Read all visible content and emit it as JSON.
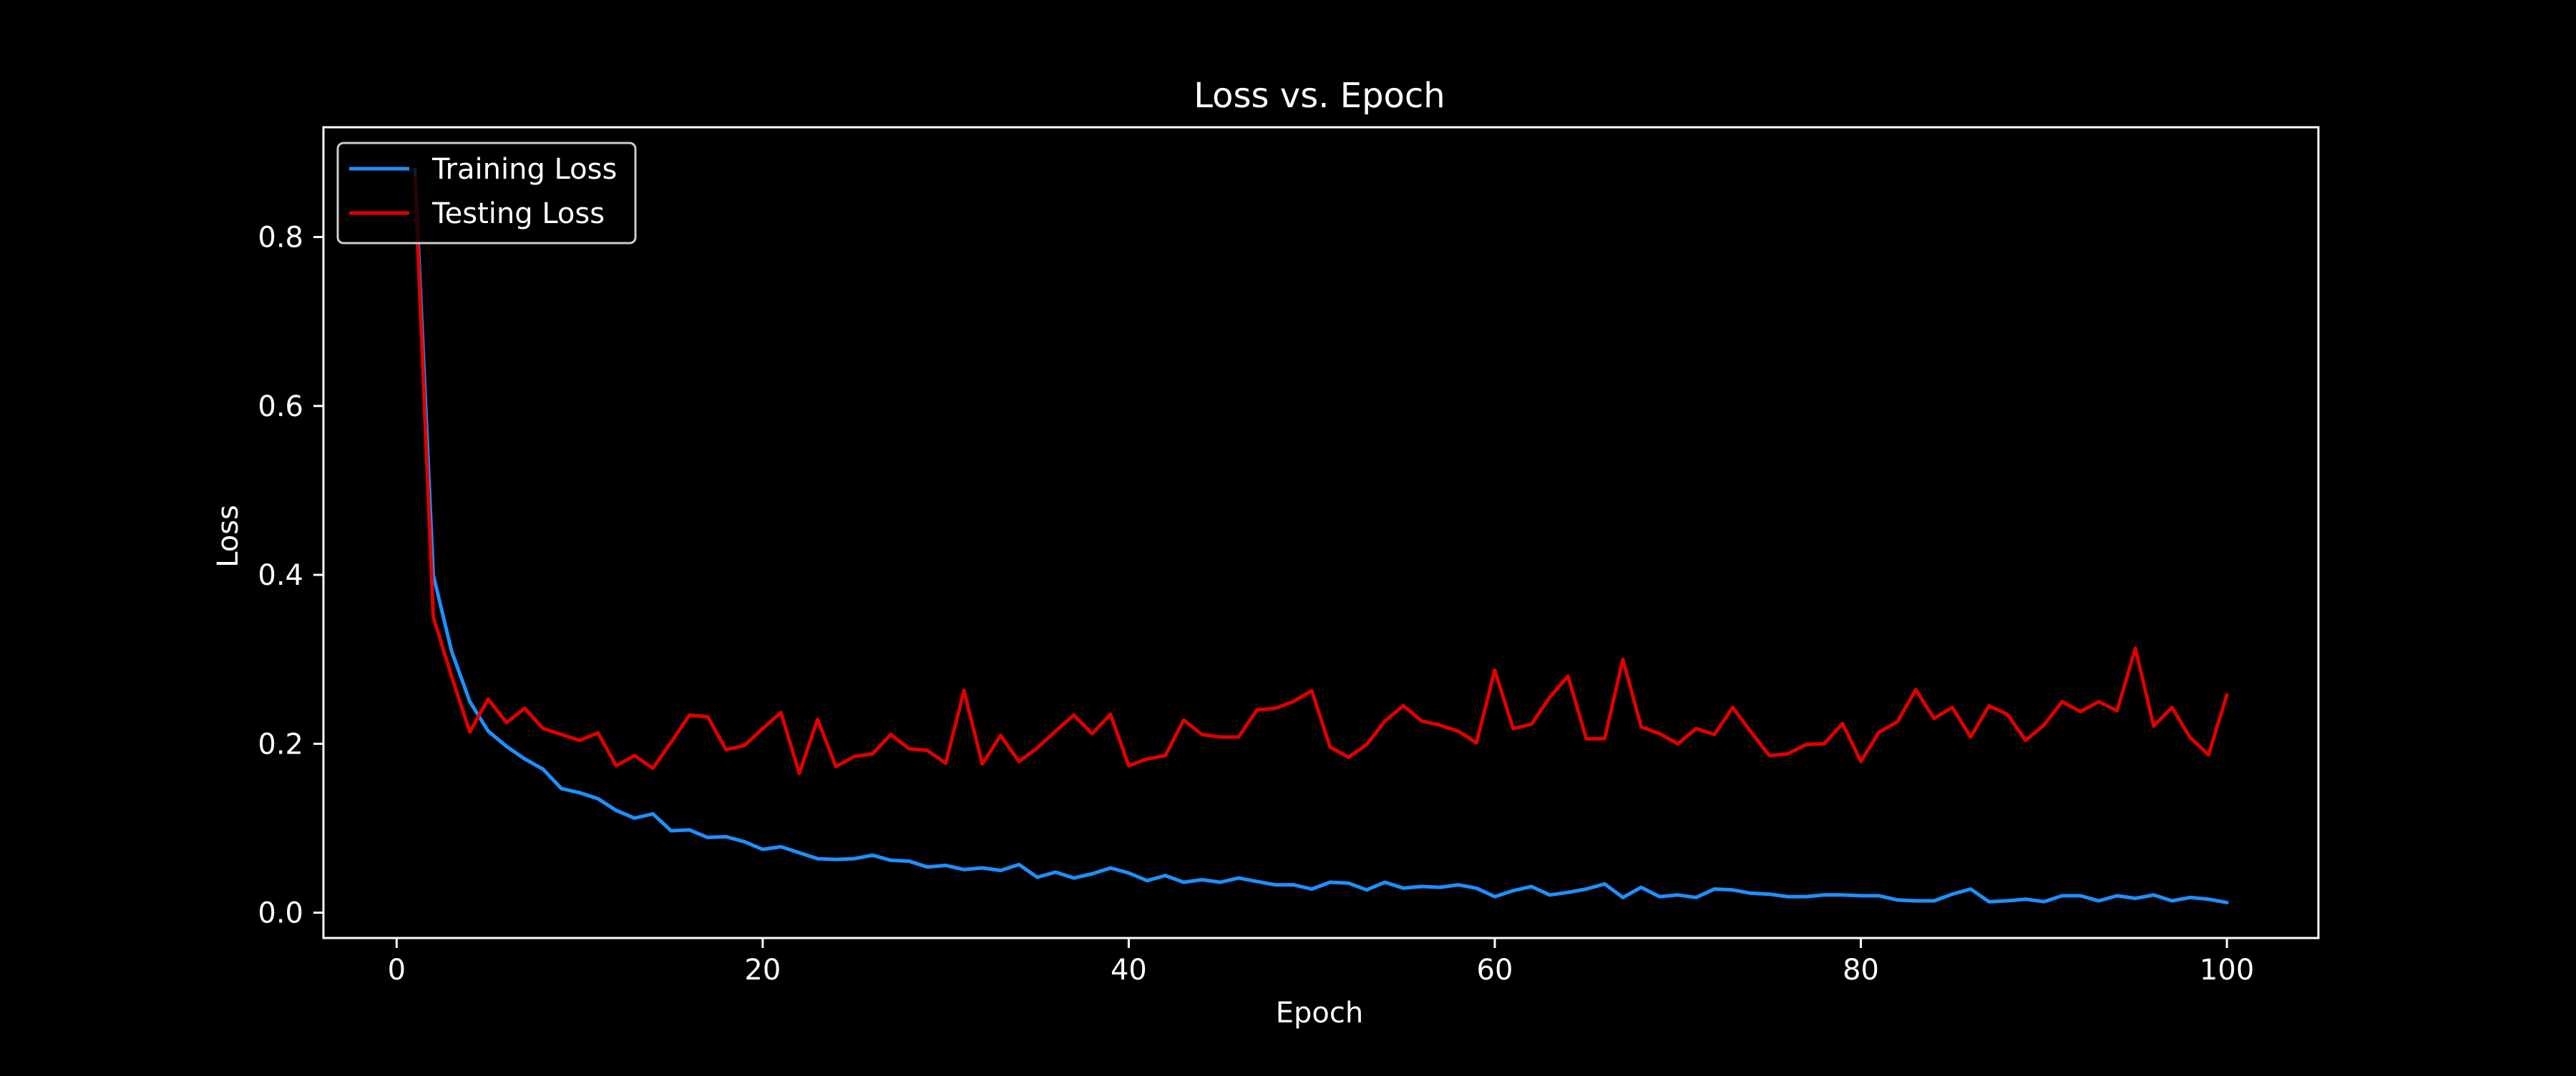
{
  "chart_data": {
    "type": "line",
    "title": "Loss vs. Epoch",
    "xlabel": "Epoch",
    "ylabel": "Loss",
    "xlim": [
      -4,
      105
    ],
    "ylim": [
      -0.03,
      0.93
    ],
    "xticks": [
      0,
      20,
      40,
      60,
      80,
      100
    ],
    "yticks": [
      0.0,
      0.2,
      0.4,
      0.6,
      0.8
    ],
    "xtick_labels": [
      "0",
      "20",
      "40",
      "60",
      "80",
      "100"
    ],
    "ytick_labels": [
      "0.0",
      "0.2",
      "0.4",
      "0.6",
      "0.8"
    ],
    "grid": false,
    "legend_position": "top-left",
    "x": [
      1,
      2,
      3,
      4,
      5,
      6,
      7,
      8,
      9,
      10,
      11,
      12,
      13,
      14,
      15,
      16,
      17,
      18,
      19,
      20,
      21,
      22,
      23,
      24,
      25,
      26,
      27,
      28,
      29,
      30,
      31,
      32,
      33,
      34,
      35,
      36,
      37,
      38,
      39,
      40,
      41,
      42,
      43,
      44,
      45,
      46,
      47,
      48,
      49,
      50,
      51,
      52,
      53,
      54,
      55,
      56,
      57,
      58,
      59,
      60,
      61,
      62,
      63,
      64,
      65,
      66,
      67,
      68,
      69,
      70,
      71,
      72,
      73,
      74,
      75,
      76,
      77,
      78,
      79,
      80,
      81,
      82,
      83,
      84,
      85,
      86,
      87,
      88,
      89,
      90,
      91,
      92,
      93,
      94,
      95,
      96,
      97,
      98,
      99,
      100
    ],
    "series": [
      {
        "name": "Training Loss",
        "color": "#1e90ff",
        "values": [
          0.88,
          0.4,
          0.31,
          0.25,
          0.215,
          0.197,
          0.182,
          0.17,
          0.147,
          0.142,
          0.135,
          0.121,
          0.112,
          0.117,
          0.097,
          0.098,
          0.089,
          0.09,
          0.084,
          0.075,
          0.078,
          0.071,
          0.064,
          0.063,
          0.064,
          0.068,
          0.062,
          0.061,
          0.054,
          0.056,
          0.051,
          0.053,
          0.05,
          0.057,
          0.042,
          0.048,
          0.041,
          0.046,
          0.053,
          0.047,
          0.038,
          0.044,
          0.036,
          0.039,
          0.036,
          0.041,
          0.037,
          0.033,
          0.033,
          0.028,
          0.036,
          0.035,
          0.027,
          0.036,
          0.029,
          0.031,
          0.03,
          0.033,
          0.029,
          0.019,
          0.026,
          0.031,
          0.021,
          0.024,
          0.028,
          0.034,
          0.018,
          0.03,
          0.019,
          0.021,
          0.018,
          0.028,
          0.027,
          0.023,
          0.022,
          0.019,
          0.019,
          0.021,
          0.021,
          0.02,
          0.02,
          0.015,
          0.014,
          0.014,
          0.022,
          0.028,
          0.013,
          0.014,
          0.016,
          0.013,
          0.02,
          0.02,
          0.014,
          0.02,
          0.017,
          0.021,
          0.014,
          0.018,
          0.016,
          0.012
        ]
      },
      {
        "name": "Testing Loss",
        "color": "#e00000",
        "values": [
          0.87,
          0.35,
          0.28,
          0.214,
          0.253,
          0.225,
          0.242,
          0.218,
          0.211,
          0.204,
          0.213,
          0.174,
          0.186,
          0.171,
          0.202,
          0.234,
          0.232,
          0.193,
          0.198,
          0.218,
          0.237,
          0.165,
          0.229,
          0.173,
          0.185,
          0.188,
          0.211,
          0.194,
          0.192,
          0.177,
          0.263,
          0.176,
          0.21,
          0.179,
          0.195,
          0.215,
          0.234,
          0.212,
          0.235,
          0.174,
          0.182,
          0.186,
          0.228,
          0.211,
          0.208,
          0.208,
          0.24,
          0.242,
          0.25,
          0.263,
          0.196,
          0.184,
          0.199,
          0.227,
          0.245,
          0.227,
          0.222,
          0.215,
          0.201,
          0.287,
          0.218,
          0.223,
          0.255,
          0.28,
          0.206,
          0.206,
          0.3,
          0.22,
          0.212,
          0.2,
          0.218,
          0.211,
          0.243,
          0.214,
          0.186,
          0.188,
          0.199,
          0.2,
          0.224,
          0.179,
          0.214,
          0.226,
          0.264,
          0.23,
          0.243,
          0.208,
          0.245,
          0.235,
          0.204,
          0.222,
          0.25,
          0.238,
          0.25,
          0.239,
          0.313,
          0.221,
          0.243,
          0.207,
          0.187,
          0.258
        ]
      }
    ]
  }
}
